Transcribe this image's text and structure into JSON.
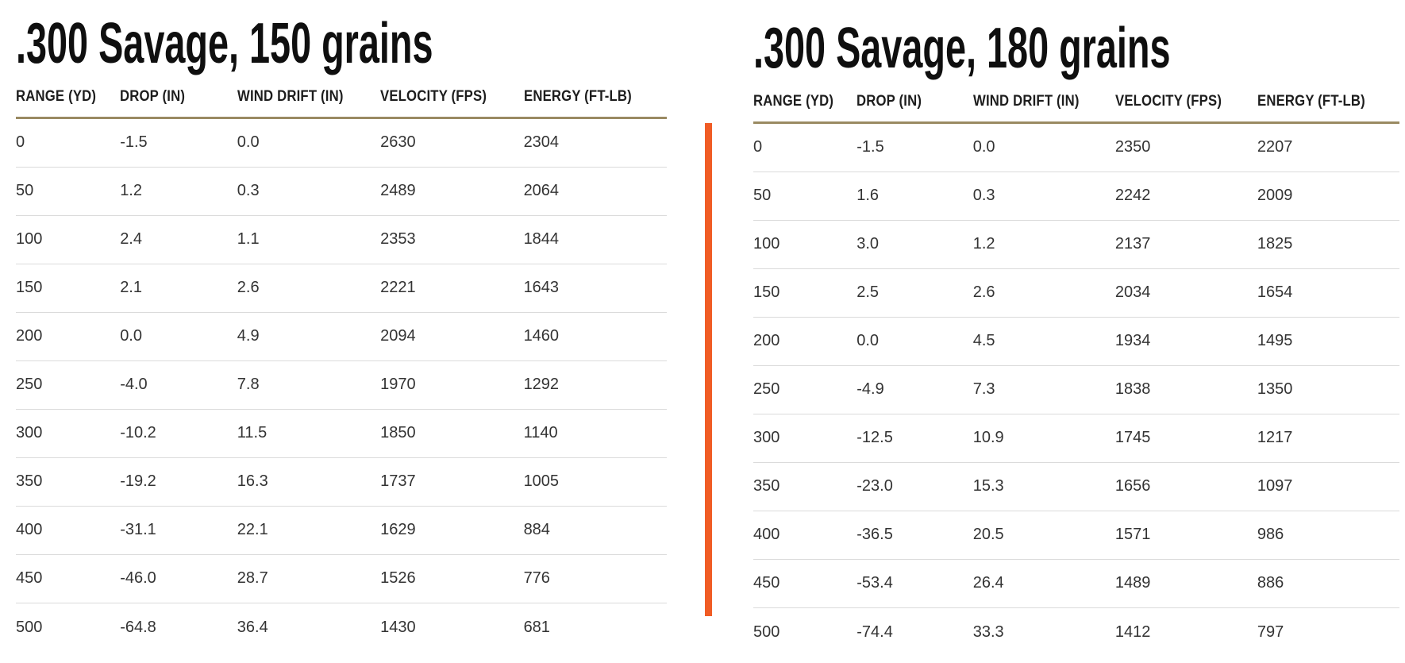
{
  "page": {
    "background": "#ffffff",
    "divider_color": "#F05C25",
    "header_rule_color": "#9A8A62",
    "row_line_color": "#DBDBDB",
    "title_color": "#0f0f0f",
    "body_text_color": "#333333"
  },
  "chart_data": [
    {
      "type": "table",
      "title": ".300 Savage, 150 grains",
      "columns": [
        "RANGE (YD)",
        "DROP (IN)",
        "WIND DRIFT (IN)",
        "VELOCITY (FPS)",
        "ENERGY (FT-LB)"
      ],
      "rows": [
        [
          "0",
          "-1.5",
          "0.0",
          "2630",
          "2304"
        ],
        [
          "50",
          "1.2",
          "0.3",
          "2489",
          "2064"
        ],
        [
          "100",
          "2.4",
          "1.1",
          "2353",
          "1844"
        ],
        [
          "150",
          "2.1",
          "2.6",
          "2221",
          "1643"
        ],
        [
          "200",
          "0.0",
          "4.9",
          "2094",
          "1460"
        ],
        [
          "250",
          "-4.0",
          "7.8",
          "1970",
          "1292"
        ],
        [
          "300",
          "-10.2",
          "11.5",
          "1850",
          "1140"
        ],
        [
          "350",
          "-19.2",
          "16.3",
          "1737",
          "1005"
        ],
        [
          "400",
          "-31.1",
          "22.1",
          "1629",
          "884"
        ],
        [
          "450",
          "-46.0",
          "28.7",
          "1526",
          "776"
        ],
        [
          "500",
          "-64.8",
          "36.4",
          "1430",
          "681"
        ]
      ]
    },
    {
      "type": "table",
      "title": ".300 Savage, 180 grains",
      "columns": [
        "RANGE (YD)",
        "DROP (IN)",
        "WIND DRIFT (IN)",
        "VELOCITY (FPS)",
        "ENERGY (FT-LB)"
      ],
      "rows": [
        [
          "0",
          "-1.5",
          "0.0",
          "2350",
          "2207"
        ],
        [
          "50",
          "1.6",
          "0.3",
          "2242",
          "2009"
        ],
        [
          "100",
          "3.0",
          "1.2",
          "2137",
          "1825"
        ],
        [
          "150",
          "2.5",
          "2.6",
          "2034",
          "1654"
        ],
        [
          "200",
          "0.0",
          "4.5",
          "1934",
          "1495"
        ],
        [
          "250",
          "-4.9",
          "7.3",
          "1838",
          "1350"
        ],
        [
          "300",
          "-12.5",
          "10.9",
          "1745",
          "1217"
        ],
        [
          "350",
          "-23.0",
          "15.3",
          "1656",
          "1097"
        ],
        [
          "400",
          "-36.5",
          "20.5",
          "1571",
          "986"
        ],
        [
          "450",
          "-53.4",
          "26.4",
          "1489",
          "886"
        ],
        [
          "500",
          "-74.4",
          "33.3",
          "1412",
          "797"
        ]
      ]
    }
  ]
}
